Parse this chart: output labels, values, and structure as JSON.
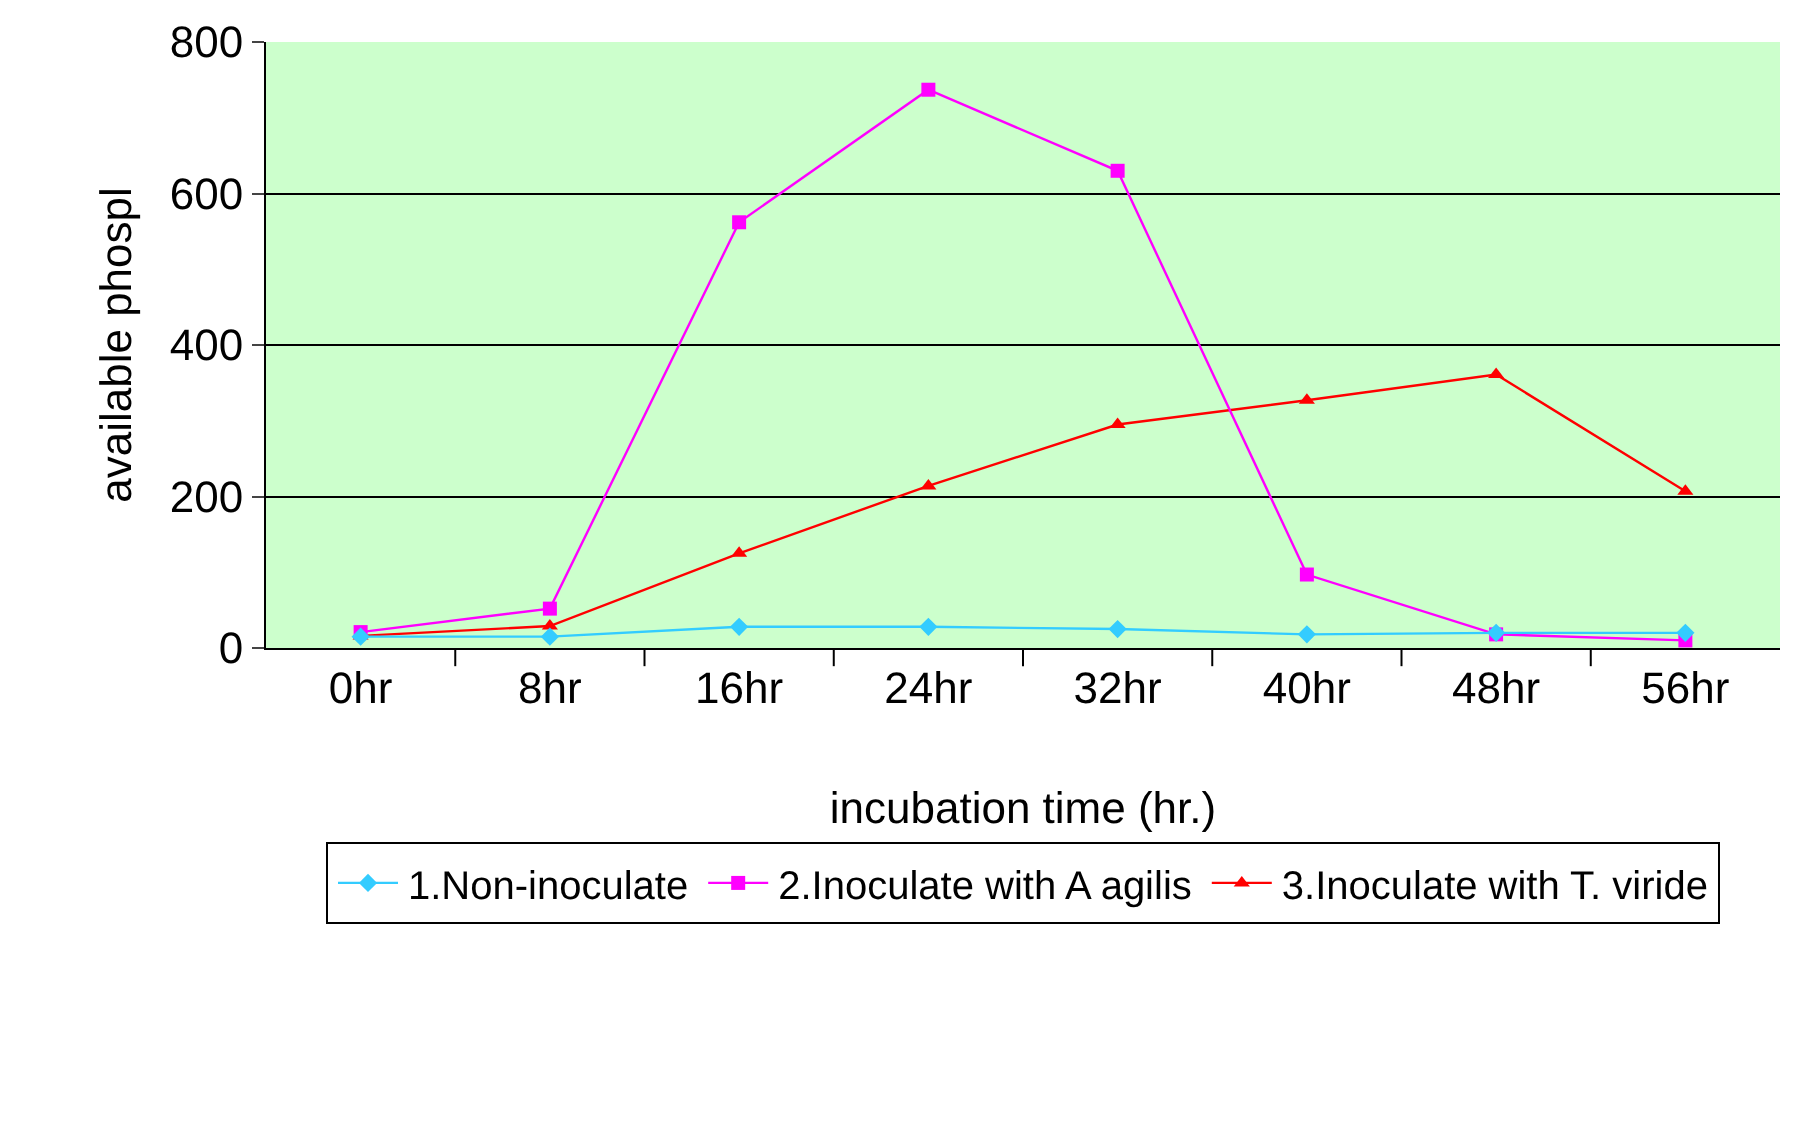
{
  "chart_data": {
    "type": "line",
    "xlabel": "incubation time (hr.)",
    "ylabel": "available phospl",
    "categories": [
      "0hr",
      "8hr",
      "16hr",
      "24hr",
      "32hr",
      "40hr",
      "48hr",
      "56hr"
    ],
    "series": [
      {
        "name": "1.Non-inoculate",
        "color": "#33ccff",
        "marker": "diamond",
        "values": [
          15,
          15,
          28,
          28,
          25,
          18,
          20,
          20
        ]
      },
      {
        "name": "2.Inoculate with A agilis",
        "color": "#ff00ff",
        "marker": "square",
        "values": [
          21,
          52,
          562,
          737,
          630,
          97,
          18,
          10
        ]
      },
      {
        "name": "3.Inoculate with T. viride",
        "color": "#ff0000",
        "marker": "triangle",
        "values": [
          16,
          29,
          125,
          214,
          295,
          327,
          361,
          207
        ]
      }
    ],
    "ylim": [
      0,
      800
    ],
    "yticks": [
      0,
      200,
      400,
      600,
      800
    ],
    "grid": "y",
    "legend": "bottom",
    "line_style": "solid"
  }
}
